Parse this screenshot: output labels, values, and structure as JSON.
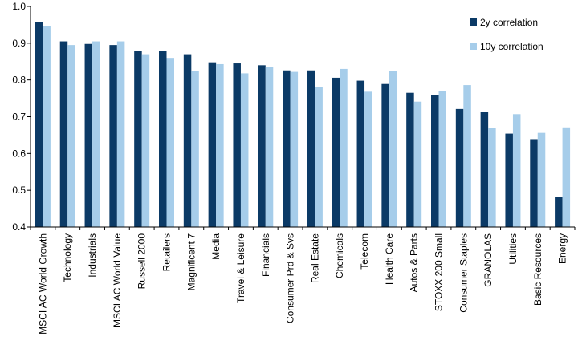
{
  "chart_data": {
    "type": "bar",
    "title": "",
    "xlabel": "",
    "ylabel": "",
    "ylim": [
      0.4,
      1.0
    ],
    "yticks": [
      "0.4",
      "0.5",
      "0.6",
      "0.7",
      "0.8",
      "0.9",
      "1.0"
    ],
    "grid": false,
    "legend_position": "top-right",
    "categories": [
      "MSCI AC World Growth",
      "Technology",
      "Industrials",
      "MSCI AC World Value",
      "Russell 2000",
      "Retailers",
      "Magnificent 7",
      "Media",
      "Travel & Leisure",
      "Financials",
      "Consumer Prd & Svs",
      "Real Estate",
      "Chemicals",
      "Telecom",
      "Health Care",
      "Autos & Parts",
      "STOXX 200 Small",
      "Consumer Staples",
      "GRANOLAS",
      "Utilities",
      "Basic Resources",
      "Energy"
    ],
    "series": [
      {
        "name": "2y correlation",
        "color": "#0b3a66",
        "values": [
          0.958,
          0.905,
          0.898,
          0.895,
          0.878,
          0.878,
          0.87,
          0.848,
          0.845,
          0.84,
          0.826,
          0.826,
          0.806,
          0.798,
          0.789,
          0.765,
          0.759,
          0.721,
          0.713,
          0.654,
          0.639,
          0.482
        ]
      },
      {
        "name": "10y correlation",
        "color": "#a6cdea",
        "values": [
          0.947,
          0.895,
          0.905,
          0.905,
          0.87,
          0.86,
          0.824,
          0.843,
          0.818,
          0.836,
          0.822,
          0.781,
          0.83,
          0.768,
          0.824,
          0.741,
          0.77,
          0.786,
          0.67,
          0.707,
          0.656,
          0.671
        ]
      }
    ]
  }
}
